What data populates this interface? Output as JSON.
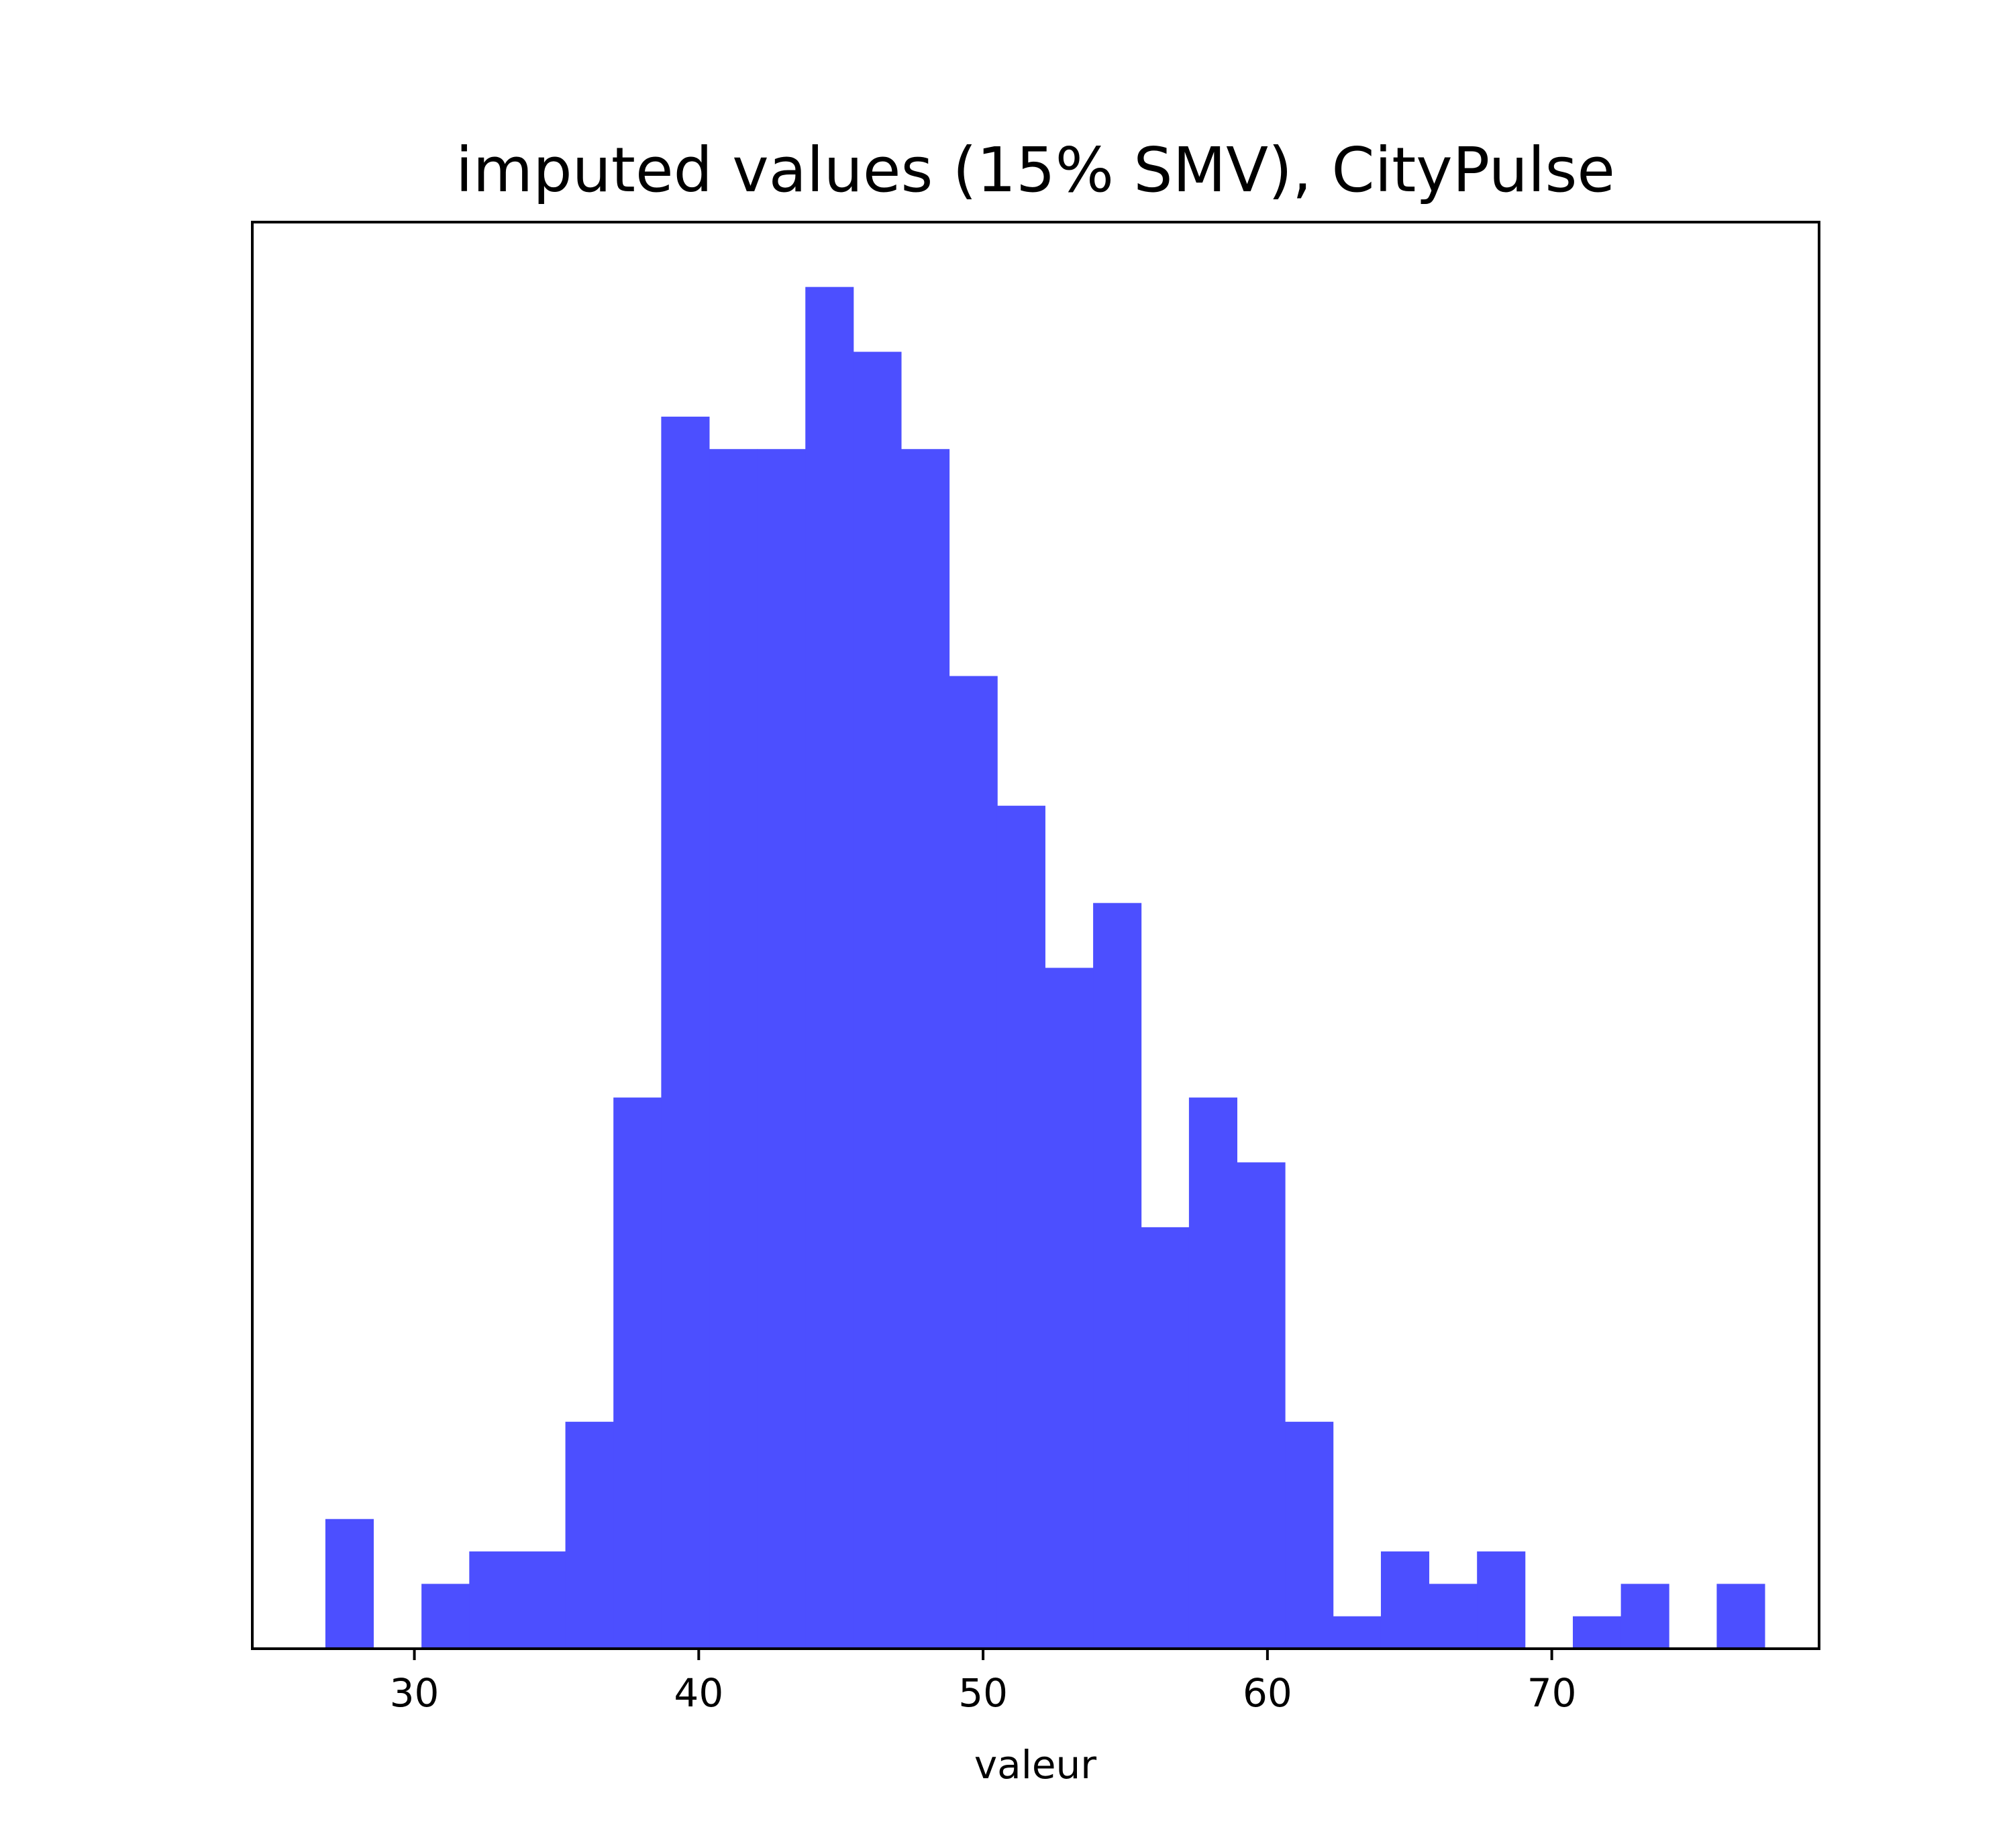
{
  "chart_data": {
    "type": "bar",
    "title": "imputed values (15% SMV), CityPulse",
    "xlabel": "valeur",
    "ylabel": "",
    "xlim": [
      24.3,
      79.4
    ],
    "ylim": [
      0,
      44
    ],
    "bin_width": 1.687,
    "bar_color": "#4c4fff",
    "grid": false,
    "legend": "none",
    "x_ticks": [
      30,
      40,
      50,
      60,
      70
    ],
    "bins": [
      {
        "start": 26.87,
        "count": 4
      },
      {
        "start": 28.56,
        "count": 0
      },
      {
        "start": 30.25,
        "count": 2
      },
      {
        "start": 31.93,
        "count": 3
      },
      {
        "start": 33.62,
        "count": 3
      },
      {
        "start": 35.31,
        "count": 7
      },
      {
        "start": 37.0,
        "count": 17
      },
      {
        "start": 38.68,
        "count": 38
      },
      {
        "start": 40.37,
        "count": 37
      },
      {
        "start": 42.06,
        "count": 37
      },
      {
        "start": 43.75,
        "count": 42
      },
      {
        "start": 45.43,
        "count": 40
      },
      {
        "start": 47.12,
        "count": 37
      },
      {
        "start": 48.81,
        "count": 30
      },
      {
        "start": 50.49,
        "count": 26
      },
      {
        "start": 52.18,
        "count": 21
      },
      {
        "start": 53.87,
        "count": 23
      },
      {
        "start": 55.56,
        "count": 13
      },
      {
        "start": 57.24,
        "count": 17
      },
      {
        "start": 58.93,
        "count": 15
      },
      {
        "start": 60.62,
        "count": 7
      },
      {
        "start": 62.3,
        "count": 1
      },
      {
        "start": 63.99,
        "count": 3
      },
      {
        "start": 65.68,
        "count": 2
      },
      {
        "start": 67.37,
        "count": 3
      },
      {
        "start": 69.05,
        "count": 0
      },
      {
        "start": 70.74,
        "count": 1
      },
      {
        "start": 72.43,
        "count": 2
      },
      {
        "start": 74.11,
        "count": 0
      },
      {
        "start": 75.8,
        "count": 2
      }
    ]
  }
}
